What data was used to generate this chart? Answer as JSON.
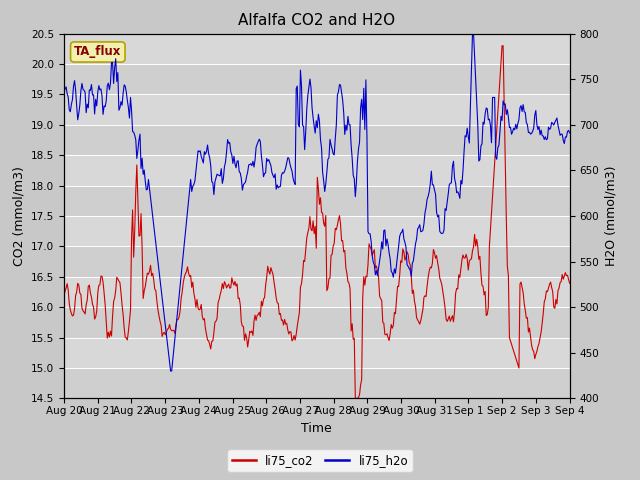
{
  "title": "Alfalfa CO2 and H2O",
  "xlabel": "Time",
  "ylabel_left": "CO2 (mmol/m3)",
  "ylabel_right": "H2O (mmol/m3)",
  "ylim_left": [
    14.5,
    20.5
  ],
  "ylim_right": [
    400,
    800
  ],
  "yticks_left": [
    14.5,
    15.0,
    15.5,
    16.0,
    16.5,
    17.0,
    17.5,
    18.0,
    18.5,
    19.0,
    19.5,
    20.0,
    20.5
  ],
  "yticks_right": [
    400,
    450,
    500,
    550,
    600,
    650,
    700,
    750,
    800
  ],
  "xtick_labels": [
    "Aug 20",
    "Aug 21",
    "Aug 22",
    "Aug 23",
    "Aug 24",
    "Aug 25",
    "Aug 26",
    "Aug 27",
    "Aug 28",
    "Aug 29",
    "Aug 30",
    "Aug 31",
    "Sep 1",
    "Sep 2",
    "Sep 3",
    "Sep 4"
  ],
  "color_co2": "#cc0000",
  "color_h2o": "#0000cc",
  "label_co2": "li75_co2",
  "label_h2o": "li75_h2o",
  "annotation_text": "TA_flux",
  "fig_bg_color": "#c8c8c8",
  "plot_bg_color": "#d8d8d8",
  "title_fontsize": 11,
  "axis_label_fontsize": 9,
  "tick_fontsize": 7.5
}
